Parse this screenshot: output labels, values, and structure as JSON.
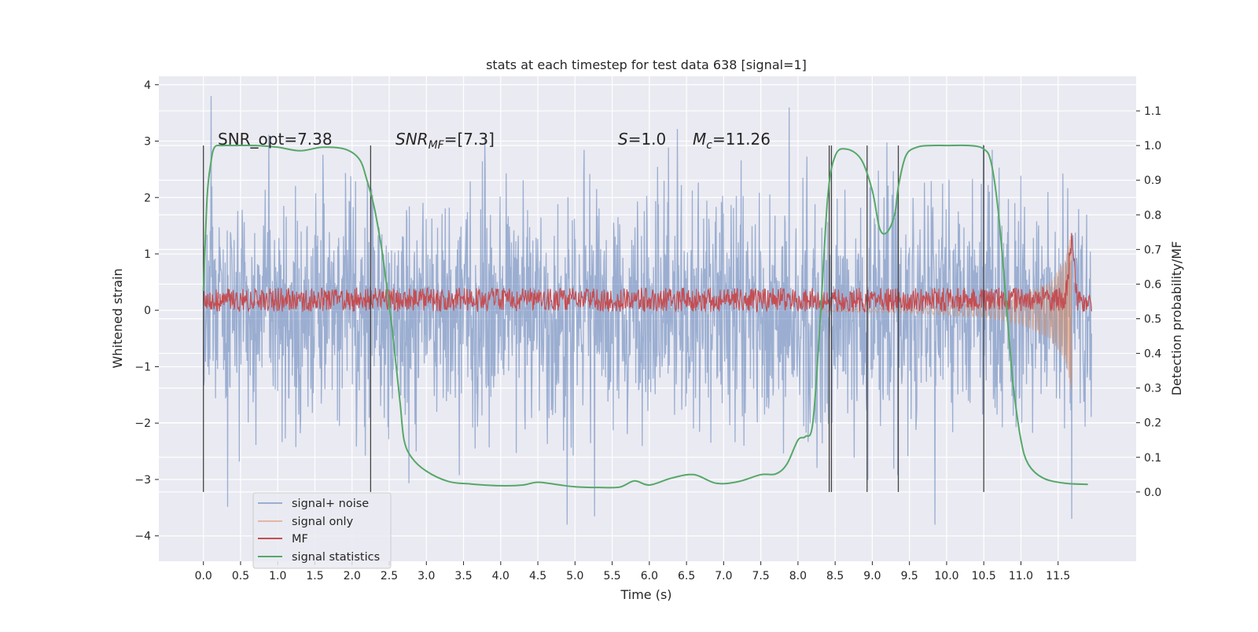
{
  "chart_data": {
    "type": "line",
    "title": "stats at each timestep for test data 638 [signal=1]",
    "xlabel": "Time (s)",
    "ylabel_left": "Whitened strain",
    "ylabel_right": "Detection probability/MF",
    "xlim": [
      -0.6,
      12.55
    ],
    "ylim_left": [
      -4.45,
      4.15
    ],
    "ylim_right": [
      -0.2,
      1.2
    ],
    "x_ticks": [
      0.0,
      0.5,
      1.0,
      1.5,
      2.0,
      2.5,
      3.0,
      3.5,
      4.0,
      4.5,
      5.0,
      5.5,
      6.0,
      6.5,
      7.0,
      7.5,
      8.0,
      8.5,
      9.0,
      9.5,
      10.0,
      10.5,
      11.0,
      11.5
    ],
    "x_tick_labels": [
      "0.0",
      "0.5",
      "1.0",
      "1.5",
      "2.0",
      "2.5",
      "3.0",
      "3.5",
      "4.0",
      "4.5",
      "5.0",
      "5.5",
      "6.0",
      "6.5",
      "7.0",
      "7.5",
      "8.0",
      "8.5",
      "9.0",
      "9.5",
      "10.0",
      "10.5",
      "11.0",
      "11.5"
    ],
    "y_left_ticks": [
      -4,
      -3,
      -2,
      -1,
      0,
      1,
      2,
      3,
      4
    ],
    "y_left_tick_labels": [
      "−4",
      "−3",
      "−2",
      "−1",
      "0",
      "1",
      "2",
      "3",
      "4"
    ],
    "y_right_ticks": [
      0.0,
      0.1,
      0.2,
      0.3,
      0.4,
      0.5,
      0.6,
      0.7,
      0.8,
      0.9,
      1.0,
      1.1
    ],
    "y_right_tick_labels": [
      "0.0",
      "0.1",
      "0.2",
      "0.3",
      "0.4",
      "0.5",
      "0.6",
      "0.7",
      "0.8",
      "0.9",
      "1.0",
      "1.1"
    ],
    "grid": true,
    "legend_position": "lower-left",
    "annotations": {
      "snr_opt": "SNR_opt=7.38",
      "snr_mf_base": "SNR",
      "snr_mf_sub": "MF",
      "snr_mf_value": "=[7.3]",
      "s_symbol": "S",
      "s_value": "=1.0",
      "mc_symbol": "M",
      "mc_sub": "c",
      "mc_value": "=11.26"
    },
    "series": [
      {
        "name": "signal+ noise",
        "color": "#4c72b0",
        "axis": "left",
        "t_range": [
          0.0,
          11.95
        ],
        "typical_amplitude": 1.7,
        "max_amplitude": 3.8
      },
      {
        "name": "signal only",
        "color": "#dd8452",
        "axis": "left",
        "t_range": [
          8.3,
          11.68
        ],
        "envelope": [
          [
            8.3,
            0.02
          ],
          [
            9.5,
            0.05
          ],
          [
            10.5,
            0.12
          ],
          [
            11.0,
            0.25
          ],
          [
            11.4,
            0.5
          ],
          [
            11.6,
            0.9
          ],
          [
            11.68,
            1.4
          ]
        ]
      },
      {
        "name": "MF",
        "color": "#c44e52",
        "axis": "right",
        "t_range": [
          0.0,
          11.95
        ],
        "baseline": 0.555,
        "amplitude": 0.035,
        "peak": [
          11.68,
          0.72
        ]
      },
      {
        "name": "signal statistics",
        "color": "#55a868",
        "axis": "right",
        "x": [
          0.0,
          0.05,
          0.1,
          0.15,
          0.25,
          0.4,
          0.7,
          1.0,
          1.3,
          1.6,
          1.9,
          2.1,
          2.2,
          2.3,
          2.4,
          2.45,
          2.5,
          2.55,
          2.6,
          2.65,
          2.7,
          2.8,
          3.0,
          3.3,
          3.6,
          4.0,
          4.3,
          4.5,
          4.8,
          5.0,
          5.3,
          5.6,
          5.8,
          6.0,
          6.3,
          6.6,
          6.9,
          7.2,
          7.5,
          7.7,
          7.85,
          8.0,
          8.1,
          8.2,
          8.3,
          8.4,
          8.5,
          8.65,
          8.85,
          9.0,
          9.1,
          9.2,
          9.3,
          9.35,
          9.45,
          9.6,
          9.8,
          10.0,
          10.3,
          10.5,
          10.6,
          10.7,
          10.8,
          10.85,
          10.9,
          11.0,
          11.1,
          11.3,
          11.6,
          11.9
        ],
        "values": [
          0.58,
          0.85,
          0.95,
          0.995,
          1.0,
          1.0,
          1.0,
          0.995,
          0.985,
          0.995,
          0.99,
          0.96,
          0.9,
          0.82,
          0.7,
          0.62,
          0.54,
          0.45,
          0.35,
          0.25,
          0.15,
          0.1,
          0.06,
          0.03,
          0.023,
          0.018,
          0.02,
          0.028,
          0.02,
          0.015,
          0.013,
          0.014,
          0.032,
          0.02,
          0.04,
          0.05,
          0.025,
          0.03,
          0.05,
          0.052,
          0.08,
          0.15,
          0.16,
          0.2,
          0.5,
          0.85,
          0.97,
          0.99,
          0.96,
          0.87,
          0.76,
          0.75,
          0.8,
          0.88,
          0.97,
          0.995,
          1.0,
          1.0,
          1.0,
          0.99,
          0.95,
          0.8,
          0.55,
          0.42,
          0.3,
          0.15,
          0.08,
          0.04,
          0.025,
          0.022
        ]
      }
    ],
    "vertical_markers": {
      "color": "#424242",
      "ymin": 0.0,
      "ymax": 1.0,
      "x": [
        0.0,
        2.25,
        8.42,
        8.45,
        8.93,
        9.35,
        10.5
      ]
    }
  }
}
